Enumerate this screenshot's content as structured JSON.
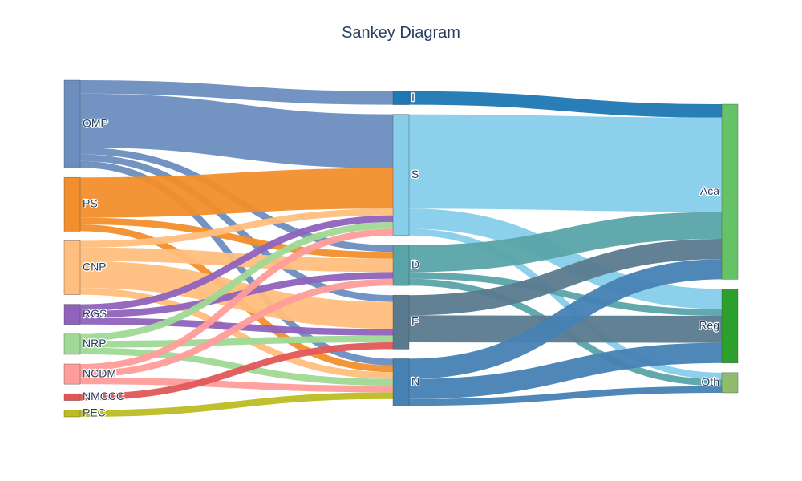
{
  "chart_data": {
    "type": "sankey",
    "title": "Sankey Diagram",
    "nodes": [
      {
        "id": "OMP",
        "label": "OMP",
        "color": "#6c8ebf",
        "column": 0
      },
      {
        "id": "PS",
        "label": "PS",
        "color": "#f28e2b",
        "column": 0
      },
      {
        "id": "CNP",
        "label": "CNP",
        "color": "#ffbe7d",
        "column": 0
      },
      {
        "id": "RGS",
        "label": "RGS",
        "color": "#8f63bd",
        "column": 0
      },
      {
        "id": "NRP",
        "label": "NRP",
        "color": "#a0d995",
        "column": 0
      },
      {
        "id": "NCDM",
        "label": "NCDM",
        "color": "#ff9d9a",
        "column": 0
      },
      {
        "id": "NMCCC",
        "label": "NMCCC",
        "color": "#e15759",
        "column": 0
      },
      {
        "id": "PEC",
        "label": "PEC",
        "color": "#bcbd22",
        "column": 0
      },
      {
        "id": "I",
        "label": "I",
        "color": "#1f77b4",
        "column": 1
      },
      {
        "id": "S",
        "label": "S",
        "color": "#87ceeb",
        "column": 1
      },
      {
        "id": "D",
        "label": "D",
        "color": "#59a4a9",
        "column": 1
      },
      {
        "id": "F",
        "label": "F",
        "color": "#5a7a8f",
        "column": 1
      },
      {
        "id": "N",
        "label": "N",
        "color": "#4682b4",
        "column": 1
      },
      {
        "id": "Aca",
        "label": "Aca",
        "color": "#66c266",
        "column": 2
      },
      {
        "id": "Reg",
        "label": "Reg",
        "color": "#2ca02c",
        "column": 2
      },
      {
        "id": "Oth",
        "label": "Oth",
        "color": "#8fbc6f",
        "column": 2
      }
    ],
    "links": [
      {
        "source": "OMP",
        "target": "I",
        "value": 2,
        "color": "#6c8ebf"
      },
      {
        "source": "OMP",
        "target": "S",
        "value": 8,
        "color": "#6c8ebf"
      },
      {
        "source": "OMP",
        "target": "D",
        "value": 1,
        "color": "#6c8ebf"
      },
      {
        "source": "OMP",
        "target": "F",
        "value": 1,
        "color": "#6c8ebf"
      },
      {
        "source": "OMP",
        "target": "N",
        "value": 1,
        "color": "#6c8ebf"
      },
      {
        "source": "PS",
        "target": "S",
        "value": 6,
        "color": "#f28e2b"
      },
      {
        "source": "PS",
        "target": "D",
        "value": 1,
        "color": "#f28e2b"
      },
      {
        "source": "PS",
        "target": "N",
        "value": 1,
        "color": "#f28e2b"
      },
      {
        "source": "CNP",
        "target": "S",
        "value": 1,
        "color": "#ffbe7d"
      },
      {
        "source": "CNP",
        "target": "D",
        "value": 2,
        "color": "#ffbe7d"
      },
      {
        "source": "CNP",
        "target": "F",
        "value": 4,
        "color": "#ffbe7d"
      },
      {
        "source": "CNP",
        "target": "N",
        "value": 1,
        "color": "#ffbe7d"
      },
      {
        "source": "RGS",
        "target": "S",
        "value": 1,
        "color": "#8f63bd"
      },
      {
        "source": "RGS",
        "target": "D",
        "value": 1,
        "color": "#8f63bd"
      },
      {
        "source": "RGS",
        "target": "F",
        "value": 1,
        "color": "#8f63bd"
      },
      {
        "source": "NRP",
        "target": "S",
        "value": 1,
        "color": "#a0d995"
      },
      {
        "source": "NRP",
        "target": "F",
        "value": 1,
        "color": "#a0d995"
      },
      {
        "source": "NRP",
        "target": "N",
        "value": 1,
        "color": "#a0d995"
      },
      {
        "source": "NCDM",
        "target": "S",
        "value": 1,
        "color": "#ff9d9a"
      },
      {
        "source": "NCDM",
        "target": "D",
        "value": 1,
        "color": "#ff9d9a"
      },
      {
        "source": "NCDM",
        "target": "N",
        "value": 1,
        "color": "#ff9d9a"
      },
      {
        "source": "NMCCC",
        "target": "F",
        "value": 1,
        "color": "#e15759"
      },
      {
        "source": "PEC",
        "target": "N",
        "value": 1,
        "color": "#bcbd22"
      },
      {
        "source": "I",
        "target": "Aca",
        "value": 2,
        "color": "#1f77b4"
      },
      {
        "source": "S",
        "target": "Aca",
        "value": 14,
        "color": "#87ceeb"
      },
      {
        "source": "S",
        "target": "Reg",
        "value": 3,
        "color": "#87ceeb"
      },
      {
        "source": "S",
        "target": "Oth",
        "value": 1,
        "color": "#87ceeb"
      },
      {
        "source": "D",
        "target": "Aca",
        "value": 4,
        "color": "#59a4a9"
      },
      {
        "source": "D",
        "target": "Reg",
        "value": 1,
        "color": "#59a4a9"
      },
      {
        "source": "D",
        "target": "Oth",
        "value": 1,
        "color": "#59a4a9"
      },
      {
        "source": "F",
        "target": "Aca",
        "value": 3,
        "color": "#5a7a8f"
      },
      {
        "source": "F",
        "target": "Reg",
        "value": 4,
        "color": "#5a7a8f"
      },
      {
        "source": "N",
        "target": "Aca",
        "value": 3,
        "color": "#4682b4"
      },
      {
        "source": "N",
        "target": "Reg",
        "value": 3,
        "color": "#4682b4"
      },
      {
        "source": "N",
        "target": "Oth",
        "value": 1,
        "color": "#4682b4"
      }
    ]
  }
}
